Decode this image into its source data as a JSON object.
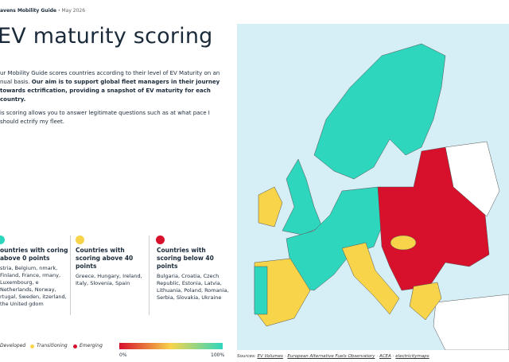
{
  "header": {
    "brand": "avens Mobility Guide",
    "date": "May 2026"
  },
  "title": "EV maturity scoring",
  "intro": {
    "p1_plain": "ur Mobility Guide scores countries according to their level of EV Maturity on an nual basis.",
    "p1_bold": "Our aim is to support global fleet managers in their journey towards ectrification, providing a snapshot of EV maturity for each country.",
    "p2": "is scoring allows you to answer legitimate questions such as at what pace I should ectrify my fleet."
  },
  "columns": [
    {
      "heading": "ountries with coring above 0 points",
      "countries": "stria, Belgium, nmark, Finland, France, rmany, Luxembourg, e Netherlands, Norway, rtugal, Sweden, itzerland, the United gdom"
    },
    {
      "heading": "Countries with scoring above 40 points",
      "countries": "Greece, Hungary, Ireland, Italy, Slovenia, Spain"
    },
    {
      "heading": "Countries with scoring below 40 points",
      "countries": "Bulgaria, Croatia, Czech Republic, Estonia, Latvia, Lithuania, Poland, Romania, Serbia, Slovakia, Ukraine"
    }
  ],
  "legend": {
    "items": [
      "Developed",
      "Transitioning",
      "Emerging"
    ],
    "scale_min": "0%",
    "scale_max": "100%"
  },
  "sources": {
    "label": "Sources:",
    "items": [
      "EV Volumes",
      "European Alternative Fuels Observatory",
      "ACEA",
      "electricitymaps"
    ]
  }
}
